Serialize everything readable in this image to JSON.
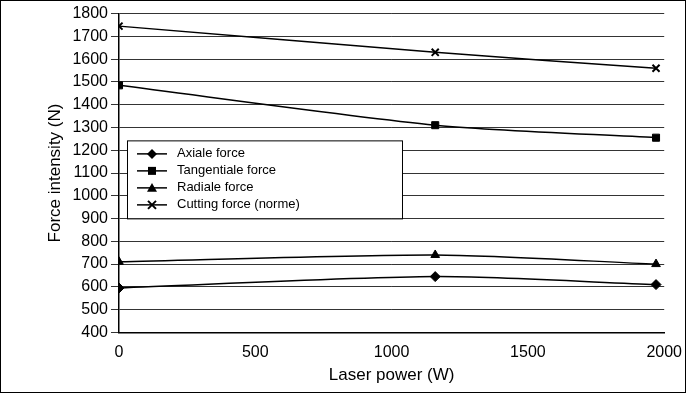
{
  "chart_data": {
    "type": "line",
    "x_label": "Laser power (W)",
    "y_label": "Force intensity (N)",
    "x": [
      0,
      1160,
      1970
    ],
    "series": [
      {
        "name": "Axiale force",
        "color": "#000000",
        "marker": "diamond",
        "values": [
          595,
          645,
          610
        ]
      },
      {
        "name": "Tangentiale force",
        "color": "#000000",
        "marker": "square",
        "values": [
          1485,
          1310,
          1255
        ]
      },
      {
        "name": "Radiale force",
        "color": "#000000",
        "marker": "triangle",
        "values": [
          710,
          740,
          700
        ]
      },
      {
        "name": "Cutting force (norme)",
        "color": "#000000",
        "marker": "x",
        "values": [
          1745,
          1630,
          1560
        ]
      }
    ],
    "xlim": [
      0,
      2000
    ],
    "xticks": [
      0,
      500,
      1000,
      1500,
      2000
    ],
    "ylim": [
      400,
      1800
    ],
    "yticks": [
      400,
      500,
      600,
      700,
      800,
      900,
      1000,
      1100,
      1200,
      1300,
      1400,
      1500,
      1600,
      1700,
      1800
    ],
    "grid": "y",
    "legend": "left"
  }
}
